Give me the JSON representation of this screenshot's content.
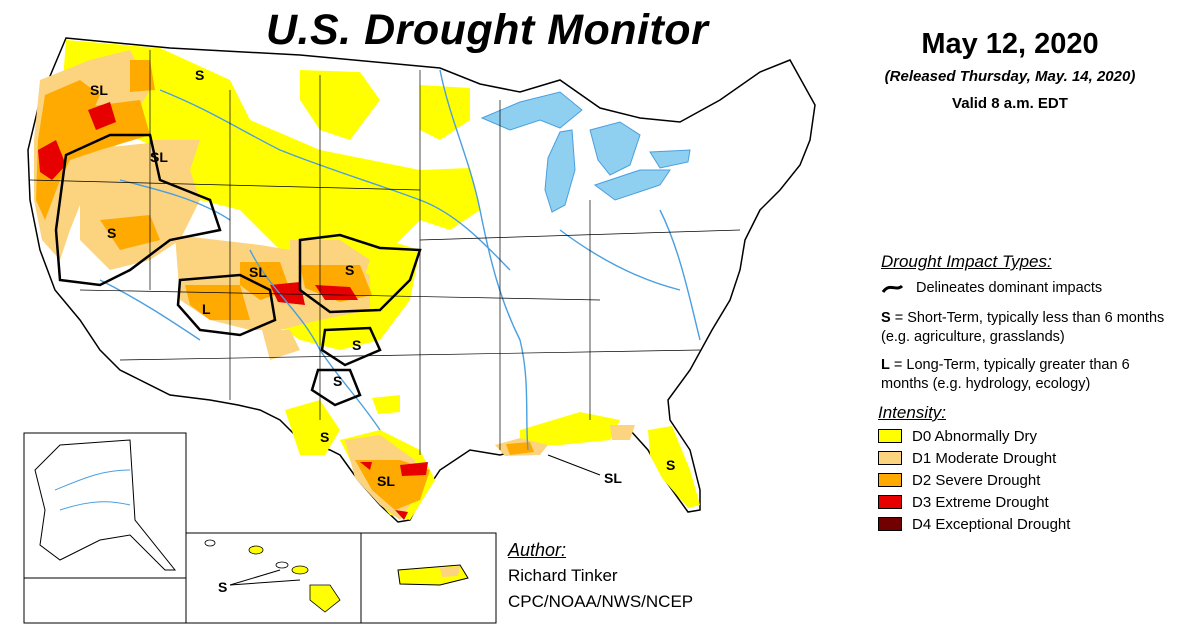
{
  "header": {
    "title": "U.S. Drought Monitor",
    "date": "May 12, 2020",
    "released": "(Released Thursday, May. 14, 2020)",
    "valid": "Valid 8 a.m. EDT"
  },
  "impact_types": {
    "heading": "Drought Impact Types:",
    "delineates": "Delineates dominant impacts",
    "short_term": {
      "code": "S",
      "description": " = Short-Term, typically less than 6 months (e.g. agriculture, grasslands)"
    },
    "long_term": {
      "code": "L",
      "description": " = Long-Term, typically greater than 6 months (e.g. hydrology, ecology)"
    }
  },
  "intensity": {
    "heading": "Intensity:",
    "items": [
      {
        "label": "D0 Abnormally Dry",
        "color": "#ffff00"
      },
      {
        "label": "D1 Moderate Drought",
        "color": "#fcd37f"
      },
      {
        "label": "D2 Severe Drought",
        "color": "#ffaa00"
      },
      {
        "label": "D3 Extreme Drought",
        "color": "#e60000"
      },
      {
        "label": "D4 Exceptional Drought",
        "color": "#730000"
      }
    ]
  },
  "author": {
    "heading": "Author:",
    "name": "Richard Tinker",
    "organization": "CPC/NOAA/NWS/NCEP"
  },
  "map_labels": [
    "SL",
    "S",
    "SL",
    "S",
    "SL",
    "S",
    "L",
    "S",
    "S",
    "S",
    "SL",
    "SL",
    "S",
    "S"
  ],
  "colors": {
    "water": "#8fcff0",
    "river": "#4a9fe0",
    "border": "#000000"
  }
}
